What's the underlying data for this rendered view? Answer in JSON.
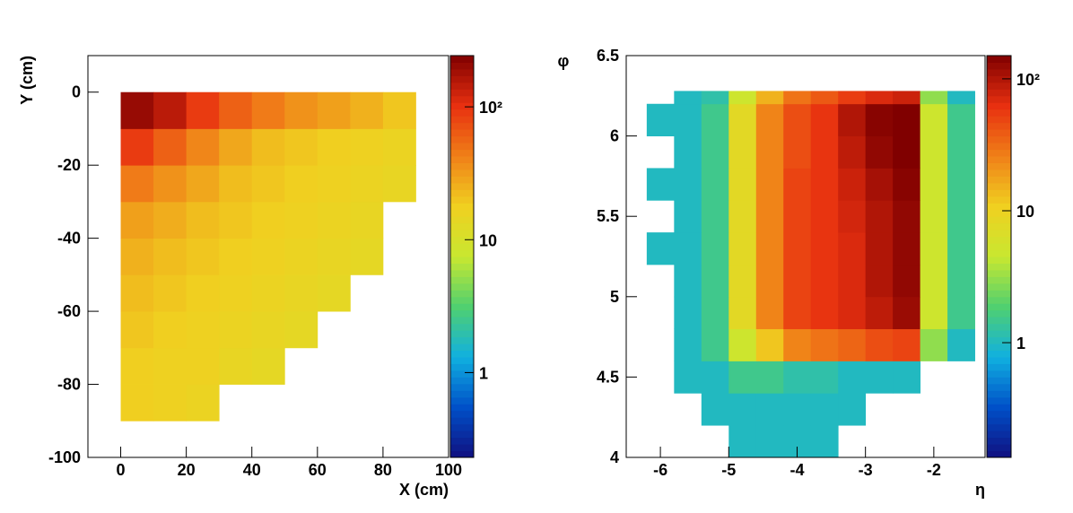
{
  "chart_data": [
    {
      "type": "heatmap",
      "x_label": "X (cm)",
      "y_label": "Y (cm)",
      "xlim": [
        -10,
        100
      ],
      "ylim": [
        -100,
        10
      ],
      "xticks": [
        0,
        20,
        40,
        60,
        80,
        100
      ],
      "yticks": [
        -100,
        -80,
        -60,
        -40,
        -20,
        0
      ],
      "xbins": [
        0,
        10,
        20,
        30,
        40,
        50,
        60,
        70,
        80,
        90
      ],
      "ybins": [
        -90,
        -80,
        -70,
        -60,
        -50,
        -40,
        -30,
        -20,
        -10,
        0
      ],
      "z": [
        [
          18,
          17,
          16,
          null,
          null,
          null,
          null,
          null,
          null
        ],
        [
          18,
          17,
          17,
          15,
          14,
          null,
          null,
          null,
          null
        ],
        [
          20,
          18,
          17,
          16,
          15,
          14,
          null,
          null,
          null
        ],
        [
          22,
          20,
          18,
          17,
          16,
          15,
          14,
          null,
          null
        ],
        [
          25,
          22,
          20,
          18,
          17,
          16,
          15,
          14,
          null
        ],
        [
          30,
          26,
          22,
          20,
          18,
          17,
          16,
          15,
          null
        ],
        [
          45,
          35,
          28,
          22,
          20,
          18,
          17,
          16,
          15
        ],
        [
          90,
          60,
          40,
          28,
          22,
          20,
          18,
          17,
          16
        ],
        [
          200,
          150,
          90,
          60,
          45,
          35,
          30,
          25,
          20
        ]
      ],
      "zscale": "log",
      "zlim": [
        0.23,
        243
      ],
      "zticks": [
        1,
        10,
        {
          "value": 100,
          "label": "10²"
        }
      ],
      "colormap": [
        "#101080",
        "#0050c8",
        "#10b0e0",
        "#50d070",
        "#c8e830",
        "#f0d020",
        "#f08018",
        "#e83010",
        "#800000"
      ]
    },
    {
      "type": "heatmap",
      "x_label": "η",
      "y_label": "φ",
      "xlim": [
        -6.5,
        -1.25
      ],
      "ylim": [
        4,
        6.5
      ],
      "xticks": [
        -6,
        -5,
        -4,
        -3,
        -2
      ],
      "yticks": [
        4,
        4.5,
        5,
        5.5,
        6,
        6.5
      ],
      "xbins": [
        -6.2,
        -5.8,
        -5.4,
        -5.0,
        -4.6,
        -4.2,
        -3.8,
        -3.4,
        -3.0,
        -2.6,
        -2.2,
        -1.8,
        -1.4
      ],
      "ybins": [
        4.0,
        4.2,
        4.4,
        4.6,
        4.8,
        5.0,
        5.2,
        5.4,
        5.6,
        5.8,
        6.0,
        6.2,
        6.28
      ],
      "z": [
        [
          null,
          null,
          null,
          1,
          1,
          1,
          1,
          null,
          null,
          null,
          null,
          null
        ],
        [
          null,
          null,
          1,
          1,
          1,
          1,
          1,
          1,
          null,
          null,
          null,
          null
        ],
        [
          null,
          1,
          1,
          1.5,
          1.5,
          1.2,
          1.2,
          1,
          1,
          1,
          null,
          null
        ],
        [
          null,
          1,
          1.5,
          5,
          12,
          25,
          30,
          35,
          45,
          50,
          3,
          1
        ],
        [
          null,
          1,
          1.5,
          8,
          25,
          50,
          60,
          70,
          90,
          120,
          5,
          1.5
        ],
        [
          null,
          1,
          1.5,
          8,
          25,
          50,
          60,
          70,
          100,
          130,
          5,
          1.5
        ],
        [
          1,
          1,
          1.5,
          8,
          25,
          50,
          60,
          70,
          100,
          130,
          5,
          1.5
        ],
        [
          null,
          1,
          1.5,
          8,
          25,
          50,
          60,
          75,
          100,
          130,
          5,
          1.5
        ],
        [
          1,
          1,
          1.5,
          8,
          25,
          50,
          60,
          80,
          110,
          140,
          5,
          1.5
        ],
        [
          null,
          1,
          1.5,
          8,
          25,
          45,
          60,
          90,
          130,
          150,
          5,
          1.5
        ],
        [
          1,
          1,
          1.5,
          8,
          25,
          45,
          60,
          100,
          140,
          150,
          5,
          1.5
        ],
        [
          null,
          1,
          1.2,
          5,
          15,
          30,
          40,
          55,
          70,
          80,
          3,
          1
        ]
      ],
      "zscale": "log",
      "zlim": [
        0.135,
        150
      ],
      "zticks": [
        1,
        10,
        {
          "value": 100,
          "label": "10²"
        }
      ],
      "colormap": [
        "#101080",
        "#0050c8",
        "#10b0e0",
        "#50d070",
        "#c8e830",
        "#f0d020",
        "#f08018",
        "#e83010",
        "#800000"
      ]
    }
  ]
}
